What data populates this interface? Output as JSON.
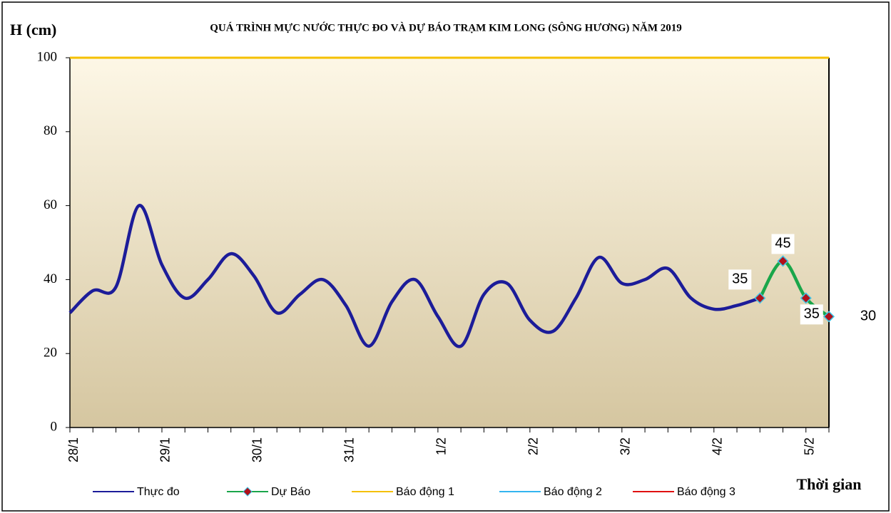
{
  "chart_data": {
    "type": "line",
    "title": "QUÁ TRÌNH MỰC NƯỚC THỰC ĐO VÀ DỰ BÁO TRẠM KIM LONG (SÔNG HƯƠNG) NĂM 2019",
    "y_label": "H (cm)",
    "x_label": "Thời gian",
    "categories": [
      "28/1",
      null,
      null,
      null,
      "29/1",
      null,
      null,
      null,
      "30/1",
      null,
      null,
      null,
      "31/1",
      null,
      null,
      null,
      "1/2",
      null,
      null,
      null,
      "2/2",
      null,
      null,
      null,
      "3/2",
      null,
      null,
      null,
      "4/2",
      null,
      null,
      null,
      "5/2",
      null
    ],
    "ylim": [
      0,
      100
    ],
    "yticks": [
      0,
      20,
      40,
      60,
      80,
      100
    ],
    "series": [
      {
        "name": "Thực đo",
        "color": "#1c1c99",
        "values": [
          31,
          37,
          38,
          60,
          44,
          35,
          40,
          47,
          41,
          31,
          36,
          40,
          33,
          22,
          34,
          40,
          30,
          22,
          36,
          39,
          29,
          26,
          35,
          46,
          39,
          40,
          43,
          35,
          32,
          33,
          35,
          null,
          null,
          null
        ]
      },
      {
        "name": "Dự Báo",
        "color": "#1aa64a",
        "values": [
          null,
          null,
          null,
          null,
          null,
          null,
          null,
          null,
          null,
          null,
          null,
          null,
          null,
          null,
          null,
          null,
          null,
          null,
          null,
          null,
          null,
          null,
          null,
          null,
          null,
          null,
          null,
          null,
          null,
          null,
          35,
          45,
          35,
          30
        ],
        "markers": true,
        "data_labels": true
      },
      {
        "name": "Báo động 1",
        "color": "#f5c000",
        "values": [
          100,
          100,
          100,
          100,
          100,
          100,
          100,
          100,
          100,
          100,
          100,
          100,
          100,
          100,
          100,
          100,
          100,
          100,
          100,
          100,
          100,
          100,
          100,
          100,
          100,
          100,
          100,
          100,
          100,
          100,
          100,
          100,
          100,
          100
        ]
      },
      {
        "name": "Báo động 2",
        "color": "#33b5f0",
        "values": [
          null,
          null,
          null,
          null,
          null,
          null,
          null,
          null,
          null,
          null,
          null,
          null,
          null,
          null,
          null,
          null,
          null,
          null,
          null,
          null,
          null,
          null,
          null,
          null,
          null,
          null,
          null,
          null,
          null,
          null,
          null,
          null,
          null,
          null
        ]
      },
      {
        "name": "Báo động 3",
        "color": "#e01010",
        "values": [
          null,
          null,
          null,
          null,
          null,
          null,
          null,
          null,
          null,
          null,
          null,
          null,
          null,
          null,
          null,
          null,
          null,
          null,
          null,
          null,
          null,
          null,
          null,
          null,
          null,
          null,
          null,
          null,
          null,
          null,
          null,
          null,
          null,
          null
        ]
      }
    ]
  }
}
